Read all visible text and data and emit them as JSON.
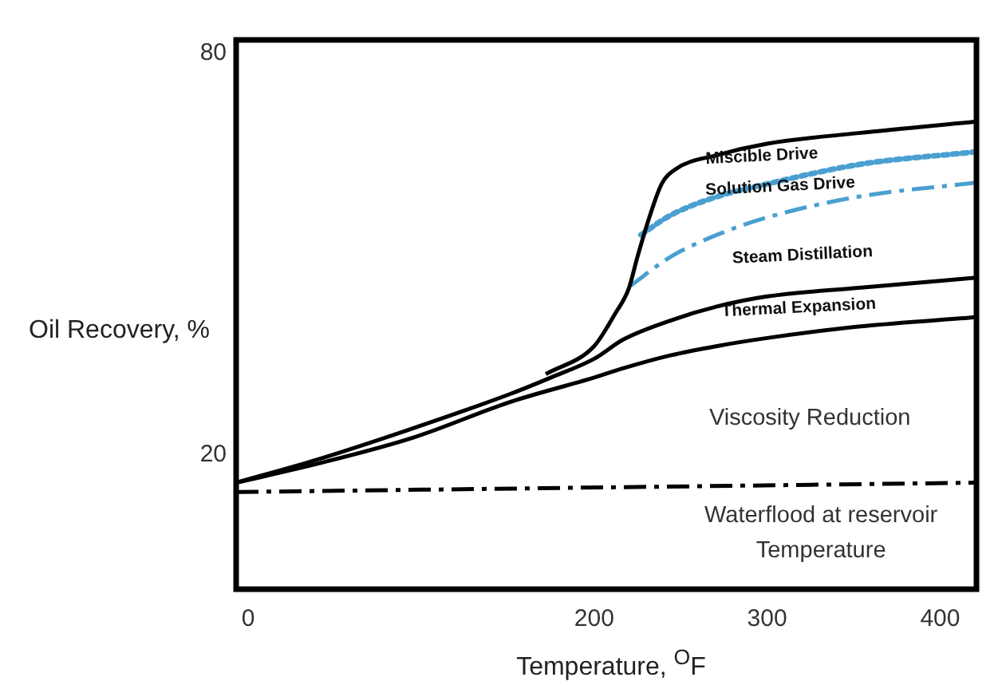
{
  "chart_data": {
    "type": "line",
    "xlabel": "Temperature, $^{O}$F",
    "ylabel": "Oil Recovery, %",
    "xlim": [
      -7,
      421
    ],
    "ylim": [
      0,
      82
    ],
    "xticks": [
      0,
      200,
      300,
      400
    ],
    "yticks": [
      20,
      80
    ],
    "grid": false,
    "legend": false,
    "marker": "none",
    "series": [
      {
        "color": "#000000",
        "line_style": "dashed",
        "x": [
          -7,
          421
        ],
        "values": [
          14.5,
          15.9
        ]
      },
      {
        "color": "#000000",
        "line_style": "solid",
        "x": [
          -7,
          38,
          95,
          152,
          200,
          217,
          244,
          271,
          300,
          353,
          421
        ],
        "values": [
          15.9,
          18.6,
          22.6,
          28,
          31.6,
          33,
          34.9,
          36.3,
          37.5,
          39.2,
          40.6
        ]
      },
      {
        "color": "#000000",
        "line_style": "solid",
        "x": [
          -7,
          38,
          95,
          152,
          175,
          200,
          217,
          244,
          271,
          300,
          353,
          421
        ],
        "values": [
          15.9,
          19.2,
          24,
          29.2,
          31.6,
          34.4,
          37.3,
          40.1,
          42.2,
          43.7,
          45,
          46.5
        ]
      },
      {
        "color": "#000000",
        "line_style": "solid",
        "x": [
          172,
          200,
          212,
          220,
          225,
          231,
          239,
          247,
          271,
          300,
          353,
          421
        ],
        "values": [
          32.1,
          36.3,
          41.1,
          44.9,
          49.6,
          54.8,
          60.5,
          62.7,
          64.8,
          66.5,
          68.1,
          69.8
        ]
      },
      {
        "color": "#4a9fd0",
        "line_style": "dotted",
        "x": [
          227,
          244,
          271,
          300,
          353,
          421
        ],
        "values": [
          52.9,
          55.8,
          58.6,
          60.5,
          63.4,
          65.3
        ]
      },
      {
        "color": "#4a9fd0",
        "line_style": "dashed",
        "x": [
          221,
          244,
          271,
          300,
          353,
          421
        ],
        "values": [
          45.3,
          49.6,
          52.9,
          55.5,
          58.6,
          60.7
        ]
      }
    ],
    "annotations": [
      "Miscible Drive",
      "Solution Gas Drive",
      "Steam Distillation",
      "Thermal Expansion",
      "Viscosity Reduction",
      "Waterflood at reservoir Temperature"
    ]
  }
}
